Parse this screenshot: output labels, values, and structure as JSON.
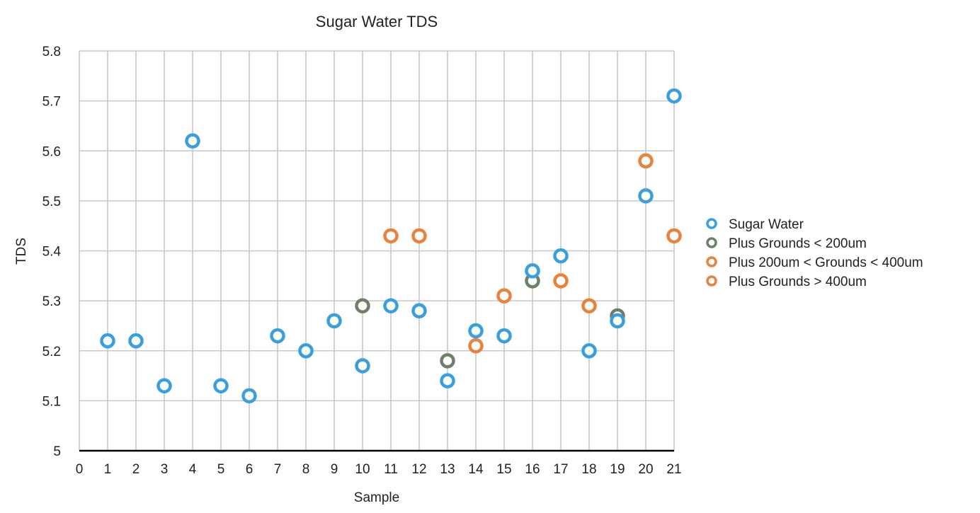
{
  "chart_data": {
    "type": "scatter",
    "title": "Sugar Water TDS",
    "xlabel": "Sample",
    "ylabel": "TDS",
    "xlim": [
      0,
      21
    ],
    "ylim": [
      5,
      5.8
    ],
    "x_ticks": [
      "0",
      "1",
      "2",
      "3",
      "4",
      "5",
      "6",
      "7",
      "8",
      "9",
      "10",
      "11",
      "12",
      "13",
      "14",
      "15",
      "16",
      "17",
      "18",
      "19",
      "20",
      "21"
    ],
    "y_ticks": [
      "5",
      "5.1",
      "5.2",
      "5.3",
      "5.4",
      "5.5",
      "5.6",
      "5.7",
      "5.8"
    ],
    "grid": true,
    "legend_position": "right",
    "series": [
      {
        "name": "Sugar Water",
        "color": "#3a9fe0",
        "x": [
          1,
          2,
          3,
          4,
          5,
          6,
          7,
          8,
          9,
          10,
          11,
          12,
          13,
          14,
          15,
          16,
          17,
          18,
          19,
          20,
          21
        ],
        "y": [
          5.22,
          5.22,
          5.13,
          5.62,
          5.13,
          5.11,
          5.23,
          5.2,
          5.26,
          5.17,
          5.29,
          5.28,
          5.14,
          5.24,
          5.23,
          5.36,
          5.39,
          5.2,
          5.26,
          5.51,
          5.71
        ]
      },
      {
        "name": "Plus Grounds < 200um",
        "color": "#6e8069",
        "x": [
          10,
          13,
          16,
          19
        ],
        "y": [
          5.29,
          5.18,
          5.34,
          5.27
        ]
      },
      {
        "name": "Plus 200um < Grounds < 400um",
        "color": "#e8823c",
        "x": [
          11,
          14,
          17,
          20
        ],
        "y": [
          5.43,
          5.21,
          5.34,
          5.58
        ]
      },
      {
        "name": "Plus Grounds > 400um",
        "color": "#e8823c",
        "x": [
          12,
          15,
          18,
          21
        ],
        "y": [
          5.43,
          5.31,
          5.29,
          5.43
        ]
      }
    ]
  }
}
